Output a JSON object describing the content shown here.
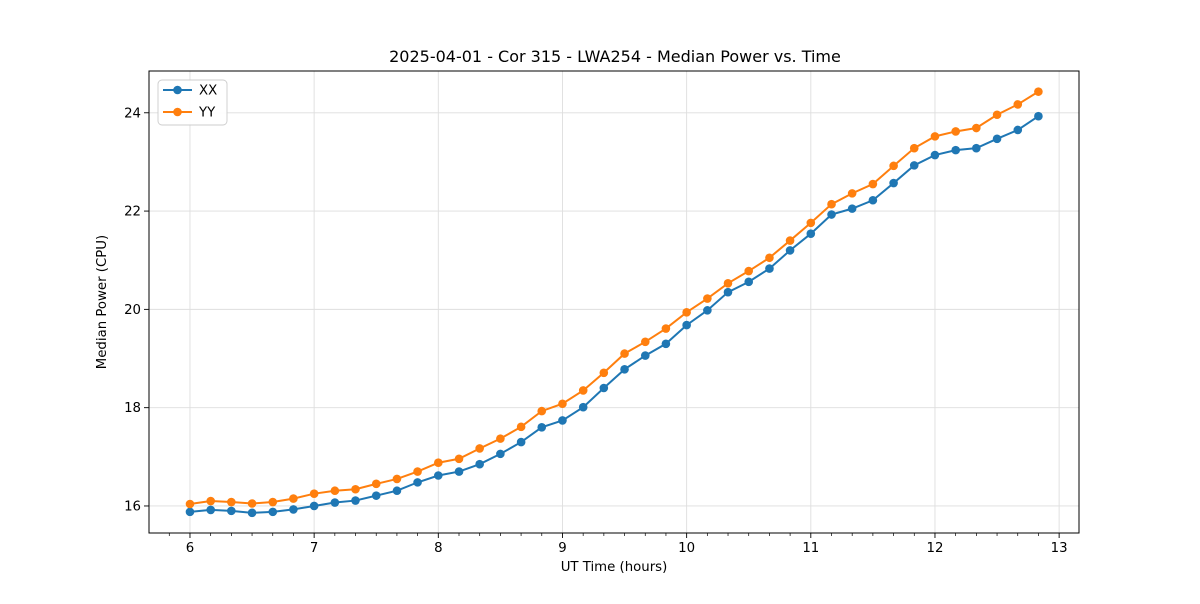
{
  "chart_data": {
    "type": "line",
    "title": "2025-04-01 - Cor 315 - LWA254 - Median Power vs. Time",
    "xlabel": "UT Time (hours)",
    "ylabel": "Median Power (CPU)",
    "xlim": [
      5.67,
      13.16
    ],
    "ylim": [
      15.45,
      24.85
    ],
    "xticks": [
      6,
      7,
      8,
      9,
      10,
      11,
      12,
      13
    ],
    "yticks": [
      16,
      18,
      20,
      22,
      24
    ],
    "minor_xtick_step_per_hour": 6,
    "grid": true,
    "legend_position": "upper left",
    "x": [
      6.0,
      6.167,
      6.333,
      6.5,
      6.667,
      6.833,
      7.0,
      7.167,
      7.333,
      7.5,
      7.667,
      7.833,
      8.0,
      8.167,
      8.333,
      8.5,
      8.667,
      8.833,
      9.0,
      9.167,
      9.333,
      9.5,
      9.667,
      9.833,
      10.0,
      10.167,
      10.333,
      10.5,
      10.667,
      10.833,
      11.0,
      11.167,
      11.333,
      11.5,
      11.667,
      11.833,
      12.0,
      12.167,
      12.333,
      12.5,
      12.667,
      12.833
    ],
    "series": [
      {
        "name": "XX",
        "color": "#1f77b4",
        "values": [
          15.88,
          15.92,
          15.9,
          15.86,
          15.88,
          15.93,
          16.0,
          16.07,
          16.11,
          16.21,
          16.31,
          16.48,
          16.62,
          16.7,
          16.85,
          17.06,
          17.3,
          17.6,
          17.74,
          18.01,
          18.4,
          18.78,
          19.06,
          19.3,
          19.68,
          19.98,
          20.35,
          20.56,
          20.83,
          21.2,
          21.54,
          21.93,
          22.05,
          22.22,
          22.57,
          22.93,
          23.14,
          23.24,
          23.28,
          23.47,
          23.65,
          23.93
        ]
      },
      {
        "name": "YY",
        "color": "#ff7f0e",
        "values": [
          16.04,
          16.1,
          16.08,
          16.05,
          16.08,
          16.15,
          16.25,
          16.31,
          16.34,
          16.45,
          16.55,
          16.7,
          16.88,
          16.96,
          17.17,
          17.37,
          17.61,
          17.93,
          18.08,
          18.35,
          18.71,
          19.1,
          19.34,
          19.61,
          19.94,
          20.22,
          20.53,
          20.78,
          21.05,
          21.4,
          21.76,
          22.14,
          22.36,
          22.55,
          22.92,
          23.28,
          23.52,
          23.62,
          23.69,
          23.96,
          24.17,
          24.43
        ]
      }
    ]
  }
}
